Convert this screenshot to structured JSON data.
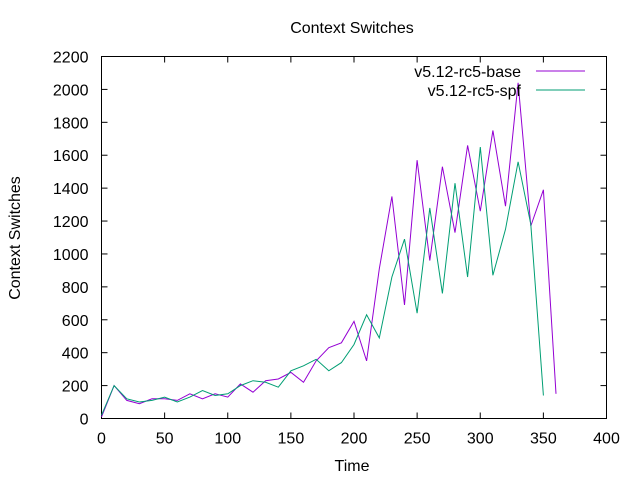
{
  "chart_data": {
    "type": "line",
    "title": "Context Switches",
    "xlabel": "Time",
    "ylabel": "Context Switches",
    "xlim": [
      0,
      400
    ],
    "ylim": [
      0,
      2200
    ],
    "xticks": [
      0,
      50,
      100,
      150,
      200,
      250,
      300,
      350,
      400
    ],
    "yticks": [
      0,
      200,
      400,
      600,
      800,
      1000,
      1200,
      1400,
      1600,
      1800,
      2000,
      2200
    ],
    "grid": false,
    "legend_position": "top-right",
    "series": [
      {
        "name": "v5.12-rc5-base",
        "color": "#9400d3",
        "x": [
          0,
          10,
          20,
          30,
          40,
          50,
          60,
          70,
          80,
          90,
          100,
          110,
          120,
          130,
          140,
          150,
          160,
          170,
          180,
          190,
          200,
          210,
          220,
          230,
          240,
          250,
          260,
          270,
          280,
          290,
          300,
          310,
          320,
          330,
          340,
          350,
          360
        ],
        "values": [
          10,
          200,
          110,
          90,
          120,
          120,
          110,
          150,
          120,
          150,
          130,
          210,
          160,
          230,
          240,
          280,
          220,
          350,
          430,
          460,
          590,
          350,
          910,
          1350,
          690,
          1570,
          960,
          1530,
          1130,
          1660,
          1260,
          1750,
          1290,
          2040,
          1170,
          1390,
          150
        ]
      },
      {
        "name": "v5.12-rc5-spf",
        "color": "#009e73",
        "x": [
          0,
          10,
          20,
          30,
          40,
          50,
          60,
          70,
          80,
          90,
          100,
          110,
          120,
          130,
          140,
          150,
          160,
          170,
          180,
          190,
          200,
          210,
          220,
          230,
          240,
          250,
          260,
          270,
          280,
          290,
          300,
          310,
          320,
          330,
          340,
          350
        ],
        "values": [
          20,
          200,
          120,
          100,
          110,
          130,
          100,
          130,
          170,
          140,
          150,
          200,
          230,
          220,
          190,
          290,
          320,
          360,
          290,
          340,
          450,
          630,
          490,
          860,
          1090,
          640,
          1280,
          760,
          1430,
          860,
          1650,
          870,
          1150,
          1560,
          1180,
          140
        ]
      }
    ]
  }
}
